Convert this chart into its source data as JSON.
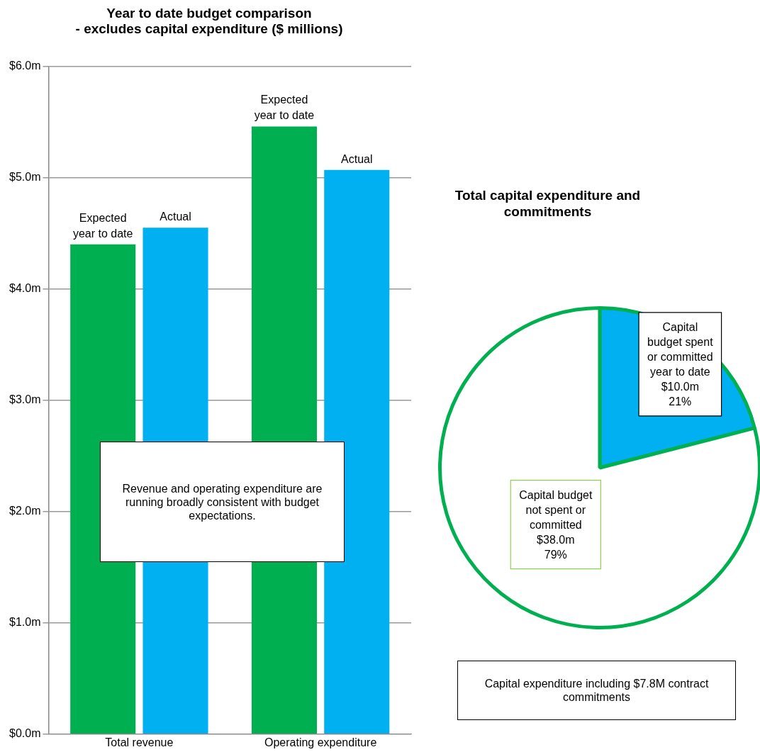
{
  "chart_data": [
    {
      "type": "bar",
      "title": "Year to date budget comparison\n- excludes capital expenditure ($ millions)",
      "categories": [
        "Total revenue",
        "Operating expenditure"
      ],
      "series": [
        {
          "name": "Expected year to date",
          "color": "#00b050",
          "values": [
            4.4,
            5.46
          ]
        },
        {
          "name": "Actual",
          "color": "#00b0f0",
          "values": [
            4.55,
            5.07
          ]
        }
      ],
      "ylim": [
        0,
        6
      ],
      "yticks": [
        {
          "value": 0,
          "label": "$0.0m"
        },
        {
          "value": 1,
          "label": "$1.0m"
        },
        {
          "value": 2,
          "label": "$2.0m"
        },
        {
          "value": 3,
          "label": "$3.0m"
        },
        {
          "value": 4,
          "label": "$4.0m"
        },
        {
          "value": 5,
          "label": "$5.0m"
        },
        {
          "value": 6,
          "label": "$6.0m"
        }
      ],
      "grid": "y",
      "legend": false,
      "annotations": [
        "Revenue and operating expenditure are running broadly consistent with budget expectations."
      ]
    },
    {
      "type": "pie",
      "title": "Total capital expenditure and commitments",
      "categories": [
        "Capital budget spent or committed year to date",
        "Capital budget not spent or committed"
      ],
      "values": [
        21,
        79
      ],
      "colors": [
        "#00b0f0",
        "#ffffff"
      ],
      "value_labels": [
        "$10.0m\n21%",
        "$38.0m\n79%"
      ],
      "legend": false,
      "annotations": [
        "Capital expenditure including $7.8M contract commitments"
      ]
    }
  ]
}
